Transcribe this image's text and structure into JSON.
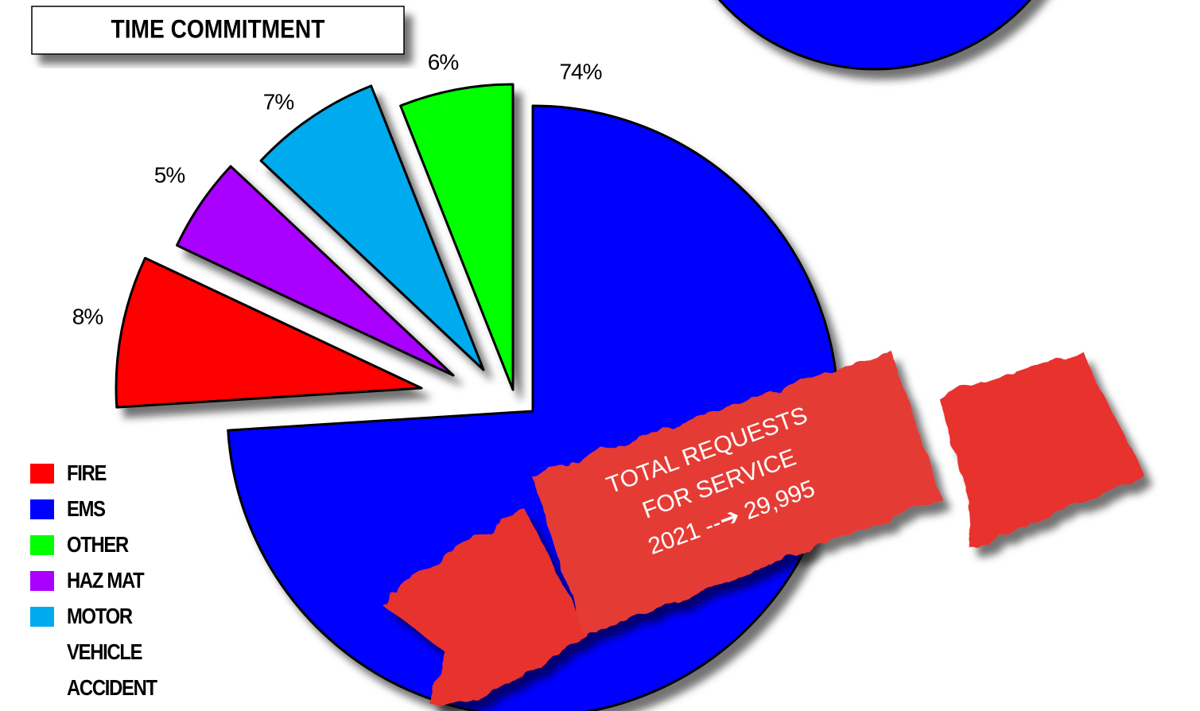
{
  "chart_data": {
    "type": "pie",
    "title": "TIME COMMITMENT",
    "categories": [
      "EMS",
      "FIRE",
      "HAZ MAT",
      "MOTOR VEHICLE ACCIDENT",
      "OTHER"
    ],
    "values": [
      74,
      8,
      5,
      7,
      6
    ],
    "value_labels": [
      "74%",
      "8%",
      "5%",
      "7%",
      "6%"
    ],
    "colors": [
      "#0000ff",
      "#ff0000",
      "#aa00ff",
      "#00aaee",
      "#00ff00"
    ],
    "annotations": [
      "TOTAL REQUESTS",
      "FOR SERVICE",
      "2021 --➔ 29,995"
    ]
  }
}
